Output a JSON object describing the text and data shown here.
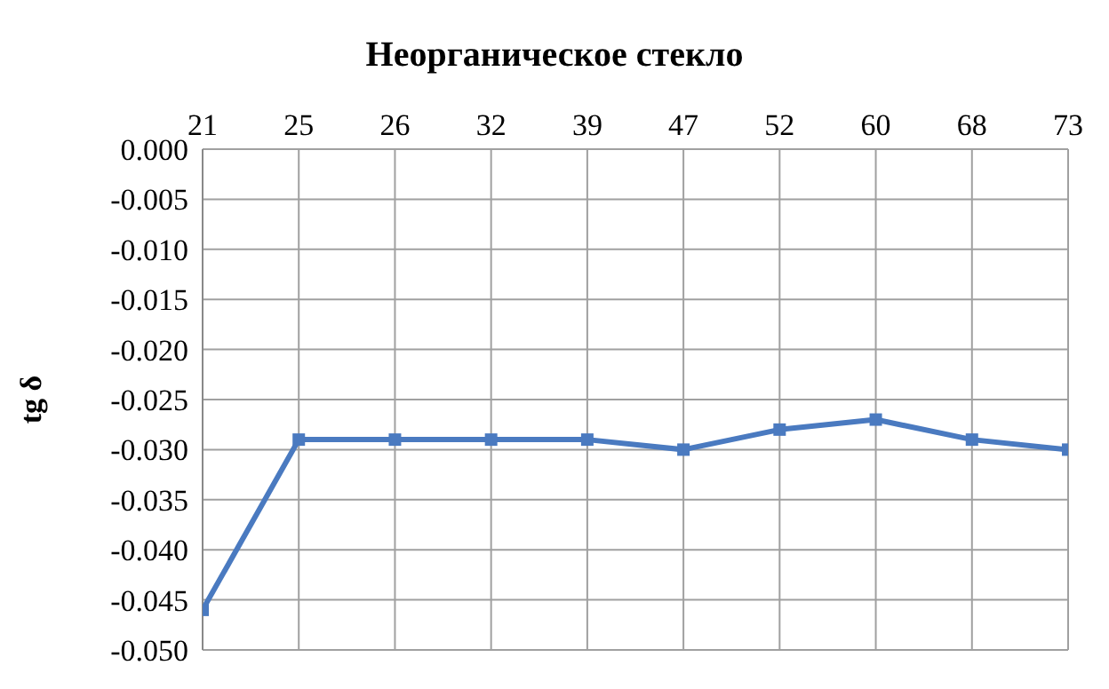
{
  "chart_data": {
    "type": "line",
    "title": "Неорганическое стекло",
    "ylabel": "tg δ",
    "categories": [
      "21",
      "25",
      "26",
      "32",
      "39",
      "47",
      "52",
      "60",
      "68",
      "73"
    ],
    "series": [
      {
        "color": "#4a7ac0",
        "values": [
          -0.046,
          -0.029,
          -0.029,
          -0.029,
          -0.029,
          -0.03,
          -0.028,
          -0.027,
          -0.029,
          -0.03
        ]
      }
    ],
    "ylim": [
      -0.05,
      0
    ],
    "yticks": [
      {
        "value": 0,
        "label": "0.000"
      },
      {
        "value": -0.005,
        "label": "-0.005"
      },
      {
        "value": -0.01,
        "label": "-0.010"
      },
      {
        "value": -0.015,
        "label": "-0.015"
      },
      {
        "value": -0.02,
        "label": "-0.020"
      },
      {
        "value": -0.025,
        "label": "-0.025"
      },
      {
        "value": -0.03,
        "label": "-0.030"
      },
      {
        "value": -0.035,
        "label": "-0.035"
      },
      {
        "value": -0.04,
        "label": "-0.040"
      },
      {
        "value": -0.045,
        "label": "-0.045"
      },
      {
        "value": -0.05,
        "label": "-0.050"
      }
    ],
    "grid": true,
    "marker": "square",
    "line_style": "solid",
    "legend": false
  }
}
